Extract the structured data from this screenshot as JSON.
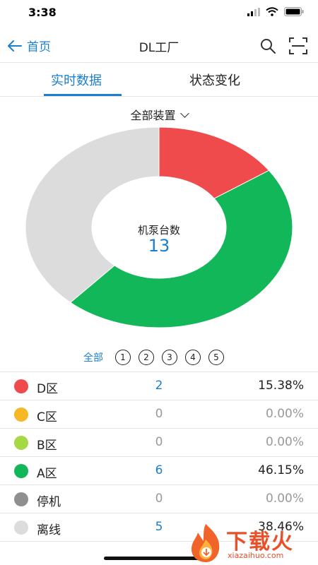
{
  "status_bar": {
    "time": "3:38"
  },
  "nav": {
    "back_label": "首页",
    "title": "DL工厂"
  },
  "tabs": [
    {
      "label": "实时数据",
      "active": true
    },
    {
      "label": "状态变化",
      "active": false
    }
  ],
  "device_filter": {
    "selected": "全部装置"
  },
  "chart_data": {
    "type": "pie",
    "donut": true,
    "center_label": "机泵台数",
    "center_value": "13",
    "categories": [
      "D区",
      "C区",
      "B区",
      "A区",
      "停机",
      "离线"
    ],
    "values": [
      2,
      0,
      0,
      6,
      0,
      5
    ],
    "colors": [
      "#f04b4c",
      "#f6b826",
      "#a5d843",
      "#12b75a",
      "#8f8f8f",
      "#dcdcdc"
    ]
  },
  "filter_tabs": {
    "all_label": "全部",
    "numbers": [
      "1",
      "2",
      "3",
      "4",
      "5"
    ]
  },
  "legend": [
    {
      "label": "D区",
      "count": "2",
      "percent": "15.38%",
      "color": "#f04b4c",
      "active": true
    },
    {
      "label": "C区",
      "count": "0",
      "percent": "0.00%",
      "color": "#f6b826",
      "active": false
    },
    {
      "label": "B区",
      "count": "0",
      "percent": "0.00%",
      "color": "#a5d843",
      "active": false
    },
    {
      "label": "A区",
      "count": "6",
      "percent": "46.15%",
      "color": "#12b75a",
      "active": true
    },
    {
      "label": "停机",
      "count": "0",
      "percent": "0.00%",
      "color": "#8f8f8f",
      "active": false
    },
    {
      "label": "离线",
      "count": "5",
      "percent": "38.46%",
      "color": "#dcdcdc",
      "active": true
    }
  ],
  "watermark": {
    "text": "下载火",
    "sub": "xiazaihuo.com"
  }
}
